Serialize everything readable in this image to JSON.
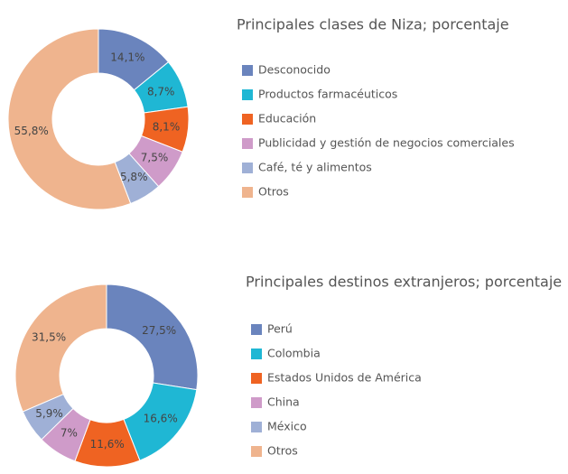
{
  "chart_data": [
    {
      "type": "donut",
      "title": "Principales clases de Niza; porcentaje",
      "categories": [
        "Desconocido",
        "Productos farmacéuticos",
        "Educación",
        "Publicidad y gestión de negocios comerciales",
        "Café, té y alimentos",
        "Otros"
      ],
      "values": [
        14.1,
        8.7,
        8.1,
        7.5,
        5.8,
        55.8
      ],
      "value_labels": [
        "14,1%",
        "8,7%",
        "8,1%",
        "7,5%",
        "5,8%",
        "55,8%"
      ],
      "colors": [
        "#6a84bd",
        "#1fb7d4",
        "#ef6322",
        "#cf9bc9",
        "#9fb0d6",
        "#efb48e"
      ]
    },
    {
      "type": "donut",
      "title": "Principales destinos extranjeros; porcentaje",
      "categories": [
        "Perú",
        "Colombia",
        "Estados Unidos de América",
        "China",
        "México",
        "Otros"
      ],
      "values": [
        27.5,
        16.6,
        11.6,
        7,
        5.9,
        31.5
      ],
      "value_labels": [
        "27,5%",
        "16,6%",
        "11,6%",
        "7%",
        "5,9%",
        "31,5%"
      ],
      "colors": [
        "#6a84bd",
        "#1fb7d4",
        "#ef6322",
        "#cf9bc9",
        "#9fb0d6",
        "#efb48e"
      ]
    }
  ]
}
